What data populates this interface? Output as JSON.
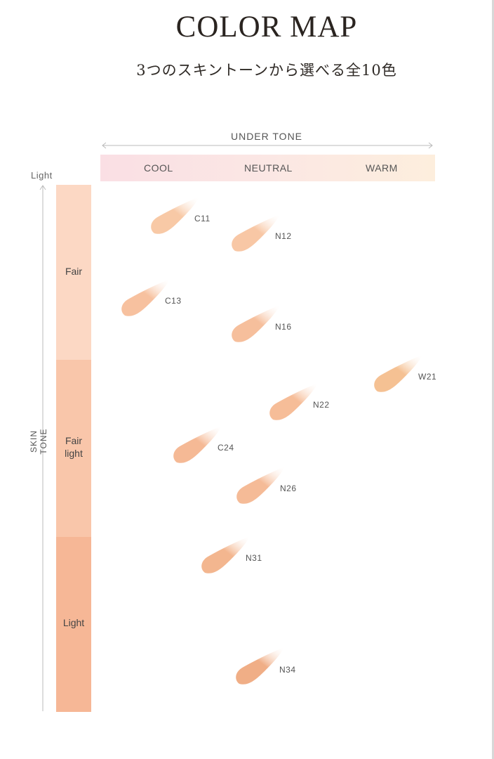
{
  "title": "COLOR MAP",
  "subtitle": "3つのスキントーンから選べる全10色",
  "under_tone": {
    "label": "UNDER TONE",
    "columns": [
      "COOL",
      "NEUTRAL",
      "WARM"
    ]
  },
  "skin_tone": {
    "label": "SKIN TONE",
    "top_label": "Light",
    "bands": [
      {
        "label": "Fair",
        "color": "#fcd8c4"
      },
      {
        "label": "Fair\nlight",
        "color": "#f9c6aa"
      },
      {
        "label": "Light",
        "color": "#f6b796"
      }
    ]
  },
  "shades": [
    {
      "code": "C11",
      "undertone": "COOL",
      "color": "#f8c9a6"
    },
    {
      "code": "N12",
      "undertone": "NEUTRAL",
      "color": "#f8c7a5"
    },
    {
      "code": "C13",
      "undertone": "COOL",
      "color": "#f7c19f"
    },
    {
      "code": "N16",
      "undertone": "NEUTRAL",
      "color": "#f6bf9c"
    },
    {
      "code": "W21",
      "undertone": "WARM",
      "color": "#f5c193"
    },
    {
      "code": "N22",
      "undertone": "NEUTRAL",
      "color": "#f6bd98"
    },
    {
      "code": "C24",
      "undertone": "COOL",
      "color": "#f5b995"
    },
    {
      "code": "N26",
      "undertone": "NEUTRAL",
      "color": "#f5bb97"
    },
    {
      "code": "N31",
      "undertone": "NEUTRAL",
      "color": "#f3b68f"
    },
    {
      "code": "N34",
      "undertone": "NEUTRAL",
      "color": "#f0ae86"
    }
  ]
}
